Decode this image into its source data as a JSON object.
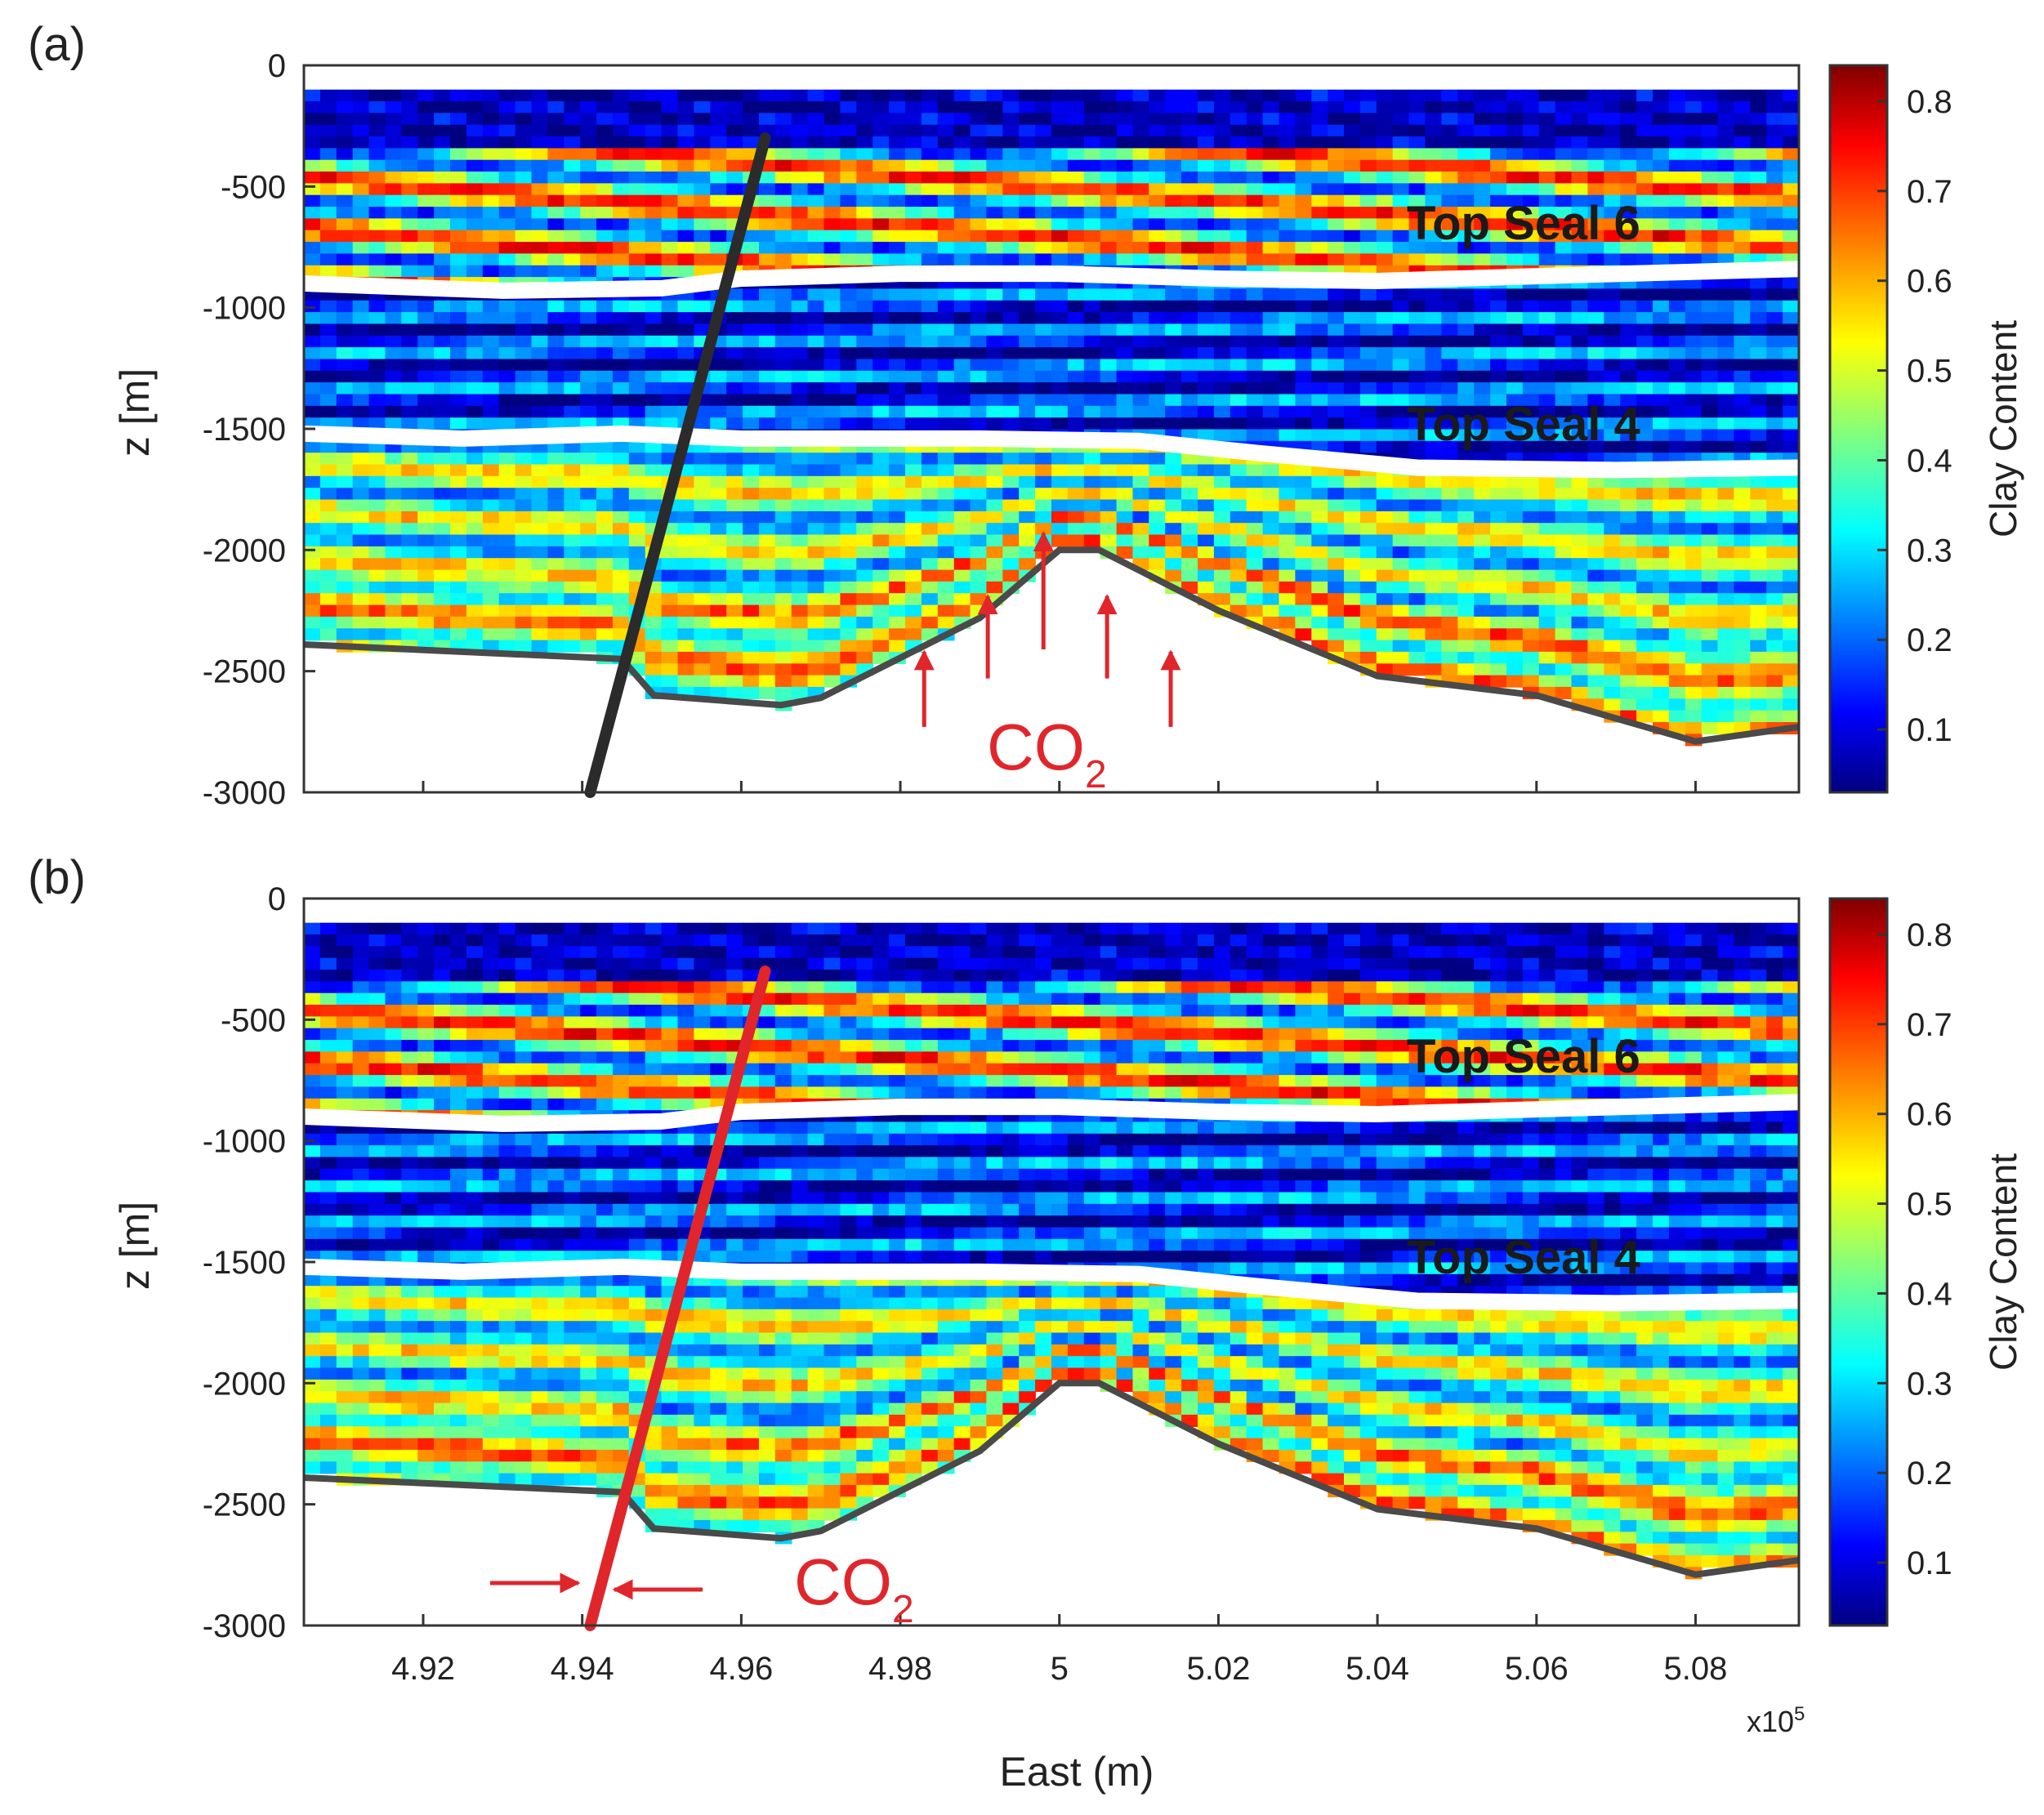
{
  "chart_data": [
    {
      "type": "heatmap",
      "panel": "(a)",
      "subtitle": "",
      "xlabel": "",
      "ylabel": "z [m]",
      "xlim": [
        4.905,
        5.093
      ],
      "ylim": [
        -3000,
        0
      ],
      "yticks": [
        0,
        -500,
        -1000,
        -1500,
        -2000,
        -2500,
        -3000
      ],
      "xticks": [],
      "colorbar": {
        "label": "Clay Content",
        "range": [
          0.03,
          0.84
        ],
        "ticks": [
          0.1,
          0.2,
          0.3,
          0.4,
          0.5,
          0.6,
          0.7,
          0.8
        ],
        "colormap": "jet"
      },
      "annotations": [
        {
          "text": "Top Seal 6",
          "depth": -650
        },
        {
          "text": "Top Seal 4",
          "depth": -1480
        },
        {
          "text": "CO",
          "subscript": "2",
          "note": "upward arrows toward anticline crest"
        }
      ],
      "fault": {
        "color": "#2b2b2b",
        "top": [
          4.963,
          -300
        ],
        "bottom": [
          4.941,
          -3000
        ]
      },
      "horizons": [
        {
          "name": "Top Seal 6",
          "points": [
            [
              4.905,
              -900
            ],
            [
              4.93,
              -930
            ],
            [
              4.95,
              -920
            ],
            [
              4.96,
              -880
            ],
            [
              4.98,
              -860
            ],
            [
              5.0,
              -860
            ],
            [
              5.02,
              -880
            ],
            [
              5.04,
              -890
            ],
            [
              5.06,
              -870
            ],
            [
              5.093,
              -840
            ]
          ]
        },
        {
          "name": "Top Seal 4",
          "points": [
            [
              4.905,
              -1520
            ],
            [
              4.925,
              -1540
            ],
            [
              4.945,
              -1520
            ],
            [
              4.96,
              -1540
            ],
            [
              4.99,
              -1540
            ],
            [
              5.01,
              -1550
            ],
            [
              5.025,
              -1600
            ],
            [
              5.045,
              -1660
            ],
            [
              5.07,
              -1670
            ],
            [
              5.093,
              -1660
            ]
          ]
        }
      ],
      "base": [
        [
          4.905,
          -2390
        ],
        [
          4.945,
          -2450
        ],
        [
          4.949,
          -2600
        ],
        [
          4.965,
          -2640
        ],
        [
          4.97,
          -2610
        ],
        [
          4.99,
          -2280
        ],
        [
          5.0,
          -2000
        ],
        [
          5.005,
          -2000
        ],
        [
          5.02,
          -2250
        ],
        [
          5.04,
          -2520
        ],
        [
          5.06,
          -2600
        ],
        [
          5.08,
          -2790
        ],
        [
          5.093,
          -2730
        ]
      ],
      "top_edge": -100
    },
    {
      "type": "heatmap",
      "panel": "(b)",
      "subtitle": "",
      "xlabel": "East (m)",
      "ylabel": "z [m]",
      "xlim": [
        4.905,
        5.093
      ],
      "ylim": [
        -3000,
        0
      ],
      "yticks": [
        0,
        -500,
        -1000,
        -1500,
        -2000,
        -2500,
        -3000
      ],
      "xticks": [
        4.92,
        4.94,
        4.96,
        4.98,
        5,
        5.02,
        5.04,
        5.06,
        5.08
      ],
      "xtick_labels": [
        "4.92",
        "4.94",
        "4.96",
        "4.98",
        "5",
        "5.02",
        "5.04",
        "5.06",
        "5.08"
      ],
      "x_multiplier": "x10",
      "x_multiplier_exp": "5",
      "colorbar": {
        "label": "Clay Content",
        "range": [
          0.03,
          0.84
        ],
        "ticks": [
          0.1,
          0.2,
          0.3,
          0.4,
          0.5,
          0.6,
          0.7,
          0.8
        ],
        "colormap": "jet"
      },
      "annotations": [
        {
          "text": "Top Seal 6",
          "depth": -650
        },
        {
          "text": "Top Seal 4",
          "depth": -1480
        },
        {
          "text": "CO",
          "subscript": "2",
          "note": "arrows converging on fault"
        }
      ],
      "fault": {
        "color": "#e0262b",
        "top": [
          4.963,
          -300
        ],
        "bottom": [
          4.941,
          -3000
        ]
      },
      "horizons": [
        {
          "name": "Top Seal 6",
          "points": [
            [
              4.905,
              -900
            ],
            [
              4.93,
              -930
            ],
            [
              4.95,
              -920
            ],
            [
              4.96,
              -880
            ],
            [
              4.98,
              -860
            ],
            [
              5.0,
              -860
            ],
            [
              5.02,
              -880
            ],
            [
              5.04,
              -890
            ],
            [
              5.06,
              -870
            ],
            [
              5.093,
              -840
            ]
          ]
        },
        {
          "name": "Top Seal 4",
          "points": [
            [
              4.905,
              -1520
            ],
            [
              4.925,
              -1540
            ],
            [
              4.945,
              -1520
            ],
            [
              4.96,
              -1540
            ],
            [
              4.99,
              -1540
            ],
            [
              5.01,
              -1550
            ],
            [
              5.025,
              -1600
            ],
            [
              5.045,
              -1660
            ],
            [
              5.07,
              -1670
            ],
            [
              5.093,
              -1660
            ]
          ]
        }
      ],
      "base": [
        [
          4.905,
          -2390
        ],
        [
          4.945,
          -2450
        ],
        [
          4.949,
          -2600
        ],
        [
          4.965,
          -2640
        ],
        [
          4.97,
          -2610
        ],
        [
          4.99,
          -2280
        ],
        [
          5.0,
          -2000
        ],
        [
          5.005,
          -2000
        ],
        [
          5.02,
          -2250
        ],
        [
          5.04,
          -2520
        ],
        [
          5.06,
          -2600
        ],
        [
          5.08,
          -2790
        ],
        [
          5.093,
          -2730
        ]
      ],
      "top_edge": -100
    }
  ]
}
